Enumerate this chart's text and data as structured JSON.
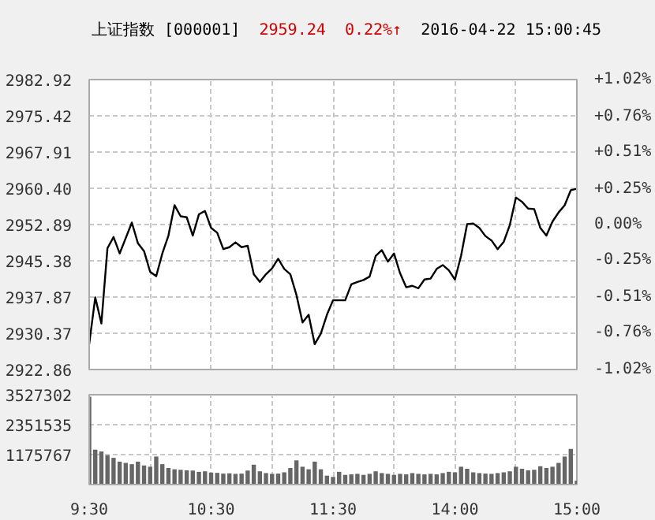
{
  "chart_data": [
    {
      "type": "line",
      "title": "上证指数 [000001]",
      "annotations": [
        "2959.24",
        "0.22%↑",
        "2016-04-22 15:00:45"
      ],
      "categories": [
        null,
        null,
        null,
        null,
        null,
        null,
        null,
        null,
        null,
        null,
        null,
        null,
        null,
        null,
        null,
        null,
        null,
        null,
        null,
        null,
        null,
        null,
        null,
        null,
        null,
        null,
        null,
        null,
        null,
        null,
        null,
        null,
        null,
        null,
        null,
        null,
        null,
        null,
        null,
        null,
        null,
        null,
        null,
        null,
        null,
        null,
        null,
        null,
        null,
        null,
        null,
        null,
        null,
        null,
        null,
        null,
        null,
        null,
        null,
        null,
        null,
        null,
        null,
        null,
        null,
        null,
        null,
        null,
        null,
        null,
        null,
        null,
        null,
        null,
        null,
        null,
        null,
        null,
        null,
        null,
        null
      ],
      "series": [
        {
          "color": "#000000",
          "values": [
            2928.1,
            2937.8,
            2932.4,
            2948.0,
            2950.3,
            2946.9,
            2950.1,
            2953.3,
            2949.0,
            2947.4,
            2943.1,
            2942.2,
            2946.9,
            2950.6,
            2956.9,
            2954.6,
            2954.4,
            2950.6,
            2955.0,
            2955.7,
            2952.2,
            2951.2,
            2947.8,
            2948.2,
            2949.2,
            2948.2,
            2948.5,
            2942.6,
            2941.0,
            2942.6,
            2943.8,
            2945.8,
            2943.7,
            2942.6,
            2938.3,
            2932.6,
            2934.2,
            2928.1,
            2930.3,
            2934.2,
            2937.2,
            2937.2,
            2937.2,
            2940.5,
            2941.0,
            2941.4,
            2942.1,
            2946.4,
            2947.6,
            2945.2,
            2946.9,
            2942.8,
            2939.9,
            2940.2,
            2939.7,
            2941.5,
            2941.7,
            2943.7,
            2944.5,
            2943.4,
            2941.5,
            2946.4,
            2953.0,
            2953.1,
            2952.2,
            2950.5,
            2949.6,
            2947.8,
            2949.3,
            2952.8,
            2958.5,
            2957.6,
            2956.2,
            2956.1,
            2952.2,
            2950.6,
            2953.5,
            2955.4,
            2956.9,
            2960.0,
            2960.3
          ]
        }
      ],
      "ylim": [
        2922.86,
        2982.92
      ],
      "yticks": [
        {
          "value": 2922.86,
          "label": "2922.86"
        },
        {
          "value": 2930.37,
          "label": "2930.37"
        },
        {
          "value": 2937.87,
          "label": "2937.87"
        },
        {
          "value": 2945.38,
          "label": "2945.38"
        },
        {
          "value": 2952.89,
          "label": "2952.89"
        },
        {
          "value": 2960.4,
          "label": "2960.40"
        },
        {
          "value": 2967.91,
          "label": "2967.91"
        },
        {
          "value": 2975.42,
          "label": "2975.42"
        },
        {
          "value": 2982.92,
          "label": "2982.92"
        }
      ],
      "y2lim": [
        -1.02,
        1.02
      ],
      "y2ticks": [
        {
          "value": -1.02,
          "label": "-1.02%"
        },
        {
          "value": -0.76,
          "label": "-0.76%"
        },
        {
          "value": -0.51,
          "label": "-0.51%"
        },
        {
          "value": -0.25,
          "label": "-0.25%"
        },
        {
          "value": 0,
          "label": "0.00%"
        },
        {
          "value": 0.25,
          "label": "+0.25%"
        },
        {
          "value": 0.51,
          "label": "+0.51%"
        },
        {
          "value": 0.76,
          "label": "+0.76%"
        },
        {
          "value": 1.02,
          "label": "+1.02%"
        }
      ],
      "tick_labels": "y",
      "grid": true
    },
    {
      "type": "bar",
      "categories": [
        "9:30",
        null,
        null,
        null,
        null,
        null,
        null,
        null,
        null,
        null,
        null,
        null,
        null,
        null,
        null,
        null,
        null,
        null,
        null,
        null,
        "10:30",
        null,
        null,
        null,
        null,
        null,
        null,
        null,
        null,
        null,
        null,
        null,
        null,
        null,
        null,
        null,
        null,
        null,
        null,
        null,
        "11:30",
        null,
        null,
        null,
        null,
        null,
        null,
        null,
        null,
        null,
        null,
        null,
        null,
        null,
        null,
        null,
        null,
        null,
        null,
        null,
        "14:00",
        null,
        null,
        null,
        null,
        null,
        null,
        null,
        null,
        null,
        null,
        null,
        null,
        null,
        null,
        null,
        null,
        null,
        null,
        null,
        "15:00"
      ],
      "series": [
        {
          "color": "#666666",
          "values": [
            3450000,
            1370000,
            1300000,
            1150000,
            1050000,
            900000,
            850000,
            800000,
            900000,
            750000,
            700000,
            1100000,
            800000,
            650000,
            600000,
            580000,
            560000,
            550000,
            500000,
            520000,
            470000,
            460000,
            430000,
            440000,
            420000,
            430000,
            550000,
            780000,
            520000,
            450000,
            420000,
            430000,
            480000,
            650000,
            950000,
            700000,
            600000,
            900000,
            600000,
            350000,
            300000,
            500000,
            380000,
            400000,
            420000,
            380000,
            420000,
            520000,
            450000,
            420000,
            380000,
            420000,
            400000,
            450000,
            420000,
            400000,
            420000,
            400000,
            450000,
            500000,
            480000,
            700000,
            620000,
            480000,
            450000,
            430000,
            420000,
            450000,
            480000,
            520000,
            700000,
            620000,
            560000,
            580000,
            720000,
            650000,
            700000,
            850000,
            1100000,
            1400000,
            150000
          ]
        }
      ],
      "ylim": [
        0,
        3527302
      ],
      "yticks": [
        {
          "value": 0,
          "label": null
        },
        1175767,
        2351535,
        3527302
      ],
      "grid": true
    }
  ]
}
